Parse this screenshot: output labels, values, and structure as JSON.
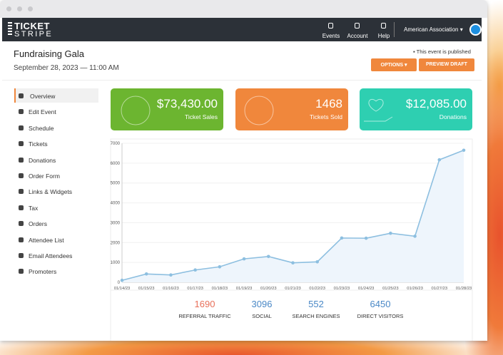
{
  "header": {
    "logo": [
      "TICKET",
      "STRIPE"
    ],
    "nav": [
      "Events",
      "Account",
      "Help"
    ],
    "organization": "American Association"
  },
  "event": {
    "title": "Fundraising Gala",
    "date": "September 28, 2023 — 11:00 AM",
    "status": "This event is published",
    "buttons": [
      "OPTIONS",
      "PREVIEW DRAFT"
    ]
  },
  "sidebar": [
    "Overview",
    "Edit Event",
    "Schedule",
    "Tickets",
    "Donations",
    "Order Form",
    "Links & Widgets",
    "Tax",
    "Orders",
    "Attendee List",
    "Email Attendees",
    "Promoters"
  ],
  "cards": [
    {
      "value": "$73,430.00",
      "label": "Ticket Sales"
    },
    {
      "value": "1468",
      "label": "Tickets Sold"
    },
    {
      "value": "$12,085.00",
      "label": "Donations"
    }
  ],
  "chart": {
    "type": "line",
    "x": [
      "01/14/23",
      "01/15/23",
      "01/16/23",
      "01/17/23",
      "01/18/23",
      "01/19/23",
      "01/20/23",
      "01/21/23",
      "01/22/23",
      "01/23/23",
      "01/24/23",
      "01/25/23",
      "01/26/23",
      "01/27/23",
      "01/28/23"
    ],
    "values": [
      100,
      420,
      370,
      620,
      780,
      1180,
      1300,
      980,
      1030,
      2230,
      2220,
      2470,
      2320,
      6170,
      6650
    ],
    "color": "#8dbfe0",
    "ylim": [
      0,
      7000
    ],
    "yticks": [
      0,
      1000,
      2000,
      3000,
      4000,
      5000,
      6000,
      7000
    ]
  },
  "traffic": [
    {
      "value": 1690,
      "label": "REFERRAL TRAFFIC"
    },
    {
      "value": 3096,
      "label": "SOCIAL"
    },
    {
      "value": 552,
      "label": "SEARCH ENGINES"
    },
    {
      "value": 6450,
      "label": "DIRECT VISITORS"
    }
  ]
}
